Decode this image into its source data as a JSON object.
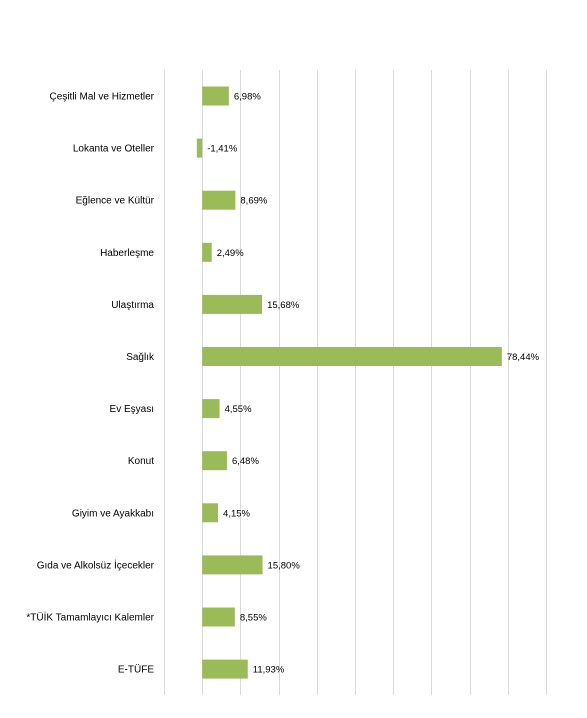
{
  "chart_data": {
    "type": "bar",
    "orientation": "horizontal",
    "categories": [
      "Çeşitli Mal ve Hizmetler",
      "Lokanta ve Oteller",
      "Eğlence ve Kültür",
      "Haberleşme",
      "Ulaştırma",
      "Sağlık",
      "Ev Eşyası",
      "Konut",
      "Giyim ve Ayakkabı",
      "Gıda ve Alkolsüz İçecekler",
      "*TÜİK Tamamlayıcı Kalemler",
      "E-TÜFE"
    ],
    "values": [
      6.98,
      -1.41,
      8.69,
      2.49,
      15.68,
      78.44,
      4.55,
      6.48,
      4.15,
      15.8,
      8.55,
      11.93
    ],
    "value_labels": [
      "6,98%",
      "-1,41%",
      "8,69%",
      "2,49%",
      "15,68%",
      "78,44%",
      "4,55%",
      "6,48%",
      "4,15%",
      "15,80%",
      "8,55%",
      "11,93%"
    ],
    "xlim": [
      -10,
      90
    ],
    "grid": true,
    "bar_color": "#9bbb59",
    "grid_color": "#d9d9d9",
    "title": "",
    "xlabel": "",
    "ylabel": ""
  }
}
